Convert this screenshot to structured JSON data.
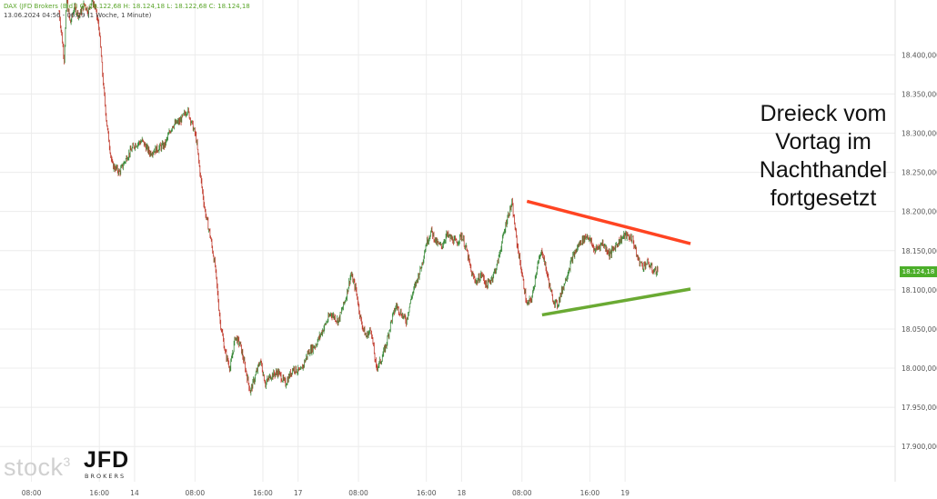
{
  "header": {
    "line1": "DAX (JFD Brokers (Bid)) O: 18.122,68  H: 18.124,18  L: 18.122,68  C: 18.124,18",
    "line2": "13.06.2024 04:56 - 06:29   (1 Woche, 1 Minute)"
  },
  "price_badge": "18.124,18",
  "annotation": "Dreieck vom Vortag im Nachthandel fortgesetzt",
  "logo": {
    "stock": "stock",
    "superscript": "3",
    "jfd": "JFD",
    "brokers": "BROKERS"
  },
  "colors": {
    "up_candle": "#3a8a3a",
    "down_candle": "#c0392b",
    "resistance_line": "#ff4422",
    "support_line": "#6aaa33",
    "badge": "#4caf2a"
  },
  "chart_data": {
    "type": "line",
    "title": "",
    "xlabel": "",
    "ylabel": "",
    "ylim": [
      17855,
      18470
    ],
    "yticks": [
      17900,
      17950,
      18000,
      18050,
      18100,
      18150,
      18200,
      18250,
      18300,
      18350,
      18400
    ],
    "ytick_labels": [
      "17.900,000",
      "17.950,000",
      "18.000,000",
      "18.050,000",
      "18.100,000",
      "18.150,000",
      "18.200,000",
      "18.250,000",
      "18.300,000",
      "18.350,000",
      "18.400,000"
    ],
    "x_ticks": [
      {
        "label": "08:00",
        "t": -0.55
      },
      {
        "label": "16:00",
        "t": 0.8
      },
      {
        "label": "14",
        "t": 1.5
      },
      {
        "label": "08:00",
        "t": 2.7
      },
      {
        "label": "16:00",
        "t": 4.05
      },
      {
        "label": "17",
        "t": 4.75
      },
      {
        "label": "08:00",
        "t": 5.95
      },
      {
        "label": "16:00",
        "t": 7.3
      },
      {
        "label": "18",
        "t": 8.0
      },
      {
        "label": "08:00",
        "t": 9.2
      },
      {
        "label": "16:00",
        "t": 10.55
      },
      {
        "label": "19",
        "t": 11.25
      }
    ],
    "series": [
      {
        "values_t": [
          0.0,
          0.1,
          0.15,
          0.22,
          0.3,
          0.4,
          0.5,
          0.58,
          0.65,
          0.72,
          0.8,
          0.88,
          0.95,
          1.05,
          1.2,
          1.35,
          1.5,
          1.65,
          1.8,
          1.95,
          2.1,
          2.25,
          2.4,
          2.55,
          2.65,
          2.72,
          2.8,
          2.9,
          3.0,
          3.1,
          3.2,
          3.3,
          3.4,
          3.5,
          3.6,
          3.7,
          3.8,
          3.9,
          4.0,
          4.1,
          4.2,
          4.35,
          4.5,
          4.65,
          4.8,
          4.95,
          5.1,
          5.25,
          5.4,
          5.55,
          5.7,
          5.8,
          5.9,
          6.0,
          6.1,
          6.2,
          6.3,
          6.4,
          6.5,
          6.6,
          6.7,
          6.8,
          6.9,
          7.0,
          7.1,
          7.2,
          7.3,
          7.4,
          7.5,
          7.6,
          7.7,
          7.8,
          7.9,
          8.0,
          8.1,
          8.2,
          8.3,
          8.4,
          8.5,
          8.6,
          8.7,
          8.8,
          8.9,
          9.0,
          9.1,
          9.2,
          9.3,
          9.4,
          9.5,
          9.6,
          9.7,
          9.8,
          9.9,
          10.0,
          10.1,
          10.2,
          10.35,
          10.5,
          10.65,
          10.8,
          10.95,
          11.1,
          11.25,
          11.4,
          11.5,
          11.6,
          11.7,
          11.8,
          11.9
        ],
        "values": [
          18455,
          18395,
          18470,
          18440,
          18460,
          18450,
          18465,
          18455,
          18470,
          18460,
          18430,
          18360,
          18310,
          18260,
          18250,
          18270,
          18285,
          18290,
          18275,
          18280,
          18285,
          18310,
          18315,
          18330,
          18310,
          18295,
          18250,
          18200,
          18170,
          18130,
          18060,
          18020,
          18000,
          18040,
          18030,
          18000,
          17970,
          17990,
          18010,
          17980,
          17990,
          17995,
          17980,
          18000,
          17995,
          18020,
          18030,
          18050,
          18070,
          18060,
          18090,
          18120,
          18100,
          18060,
          18040,
          18050,
          18000,
          18010,
          18030,
          18060,
          18080,
          18070,
          18060,
          18090,
          18110,
          18130,
          18160,
          18175,
          18160,
          18155,
          18170,
          18165,
          18160,
          18170,
          18150,
          18120,
          18110,
          18120,
          18105,
          18115,
          18130,
          18160,
          18190,
          18210,
          18160,
          18120,
          18080,
          18090,
          18130,
          18150,
          18120,
          18090,
          18080,
          18100,
          18120,
          18140,
          18160,
          18170,
          18150,
          18160,
          18145,
          18160,
          18170,
          18165,
          18140,
          18130,
          18135,
          18125,
          18124
        ]
      }
    ],
    "trendlines": [
      {
        "t1": 9.3,
        "v1": 18213,
        "t2": 12.55,
        "v2": 18159
      },
      {
        "t1": 9.6,
        "v1": 18068,
        "t2": 12.55,
        "v2": 18101
      }
    ]
  }
}
